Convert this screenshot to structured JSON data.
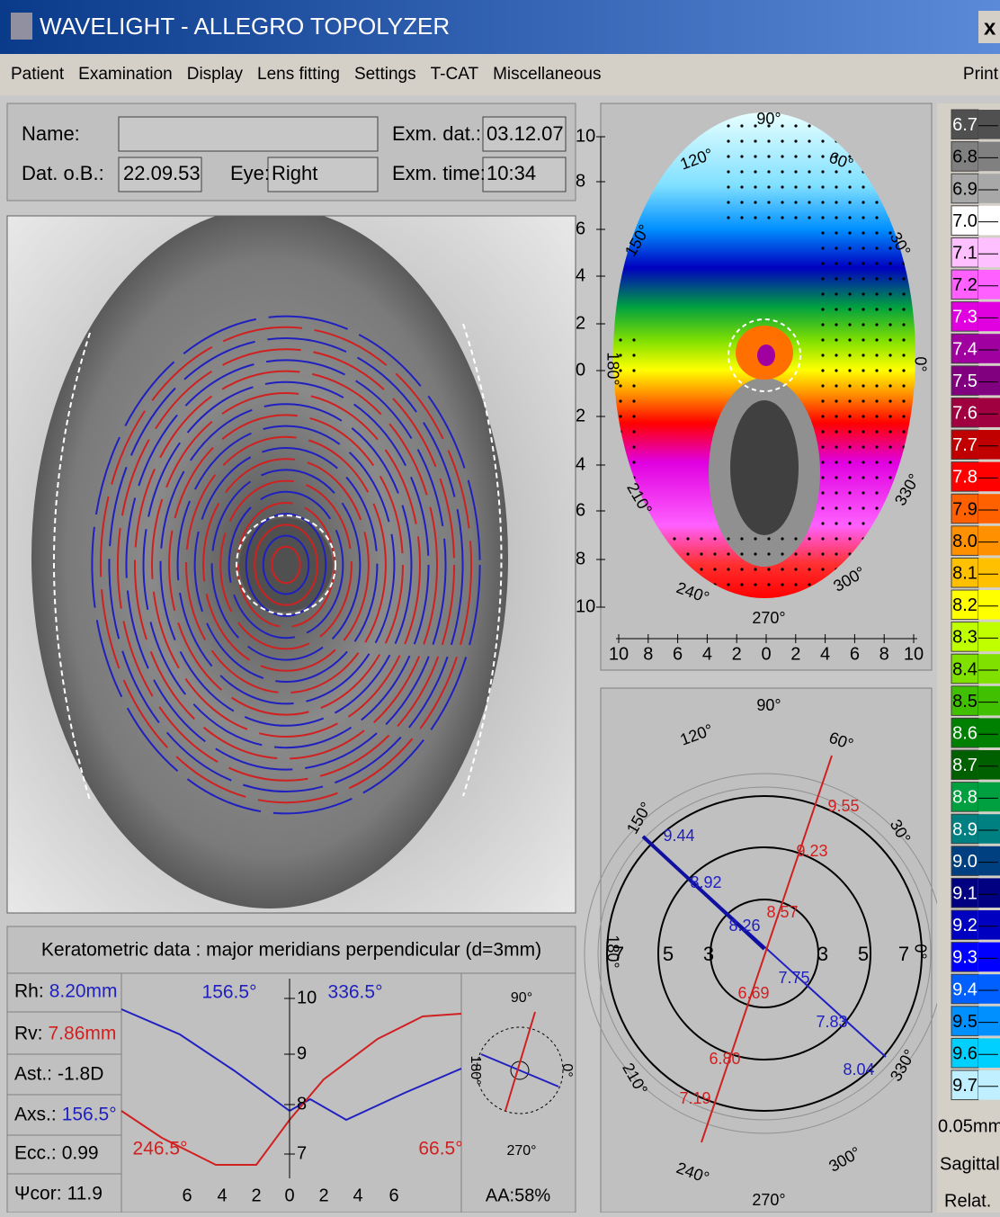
{
  "window": {
    "title": "WAVELIGHT  -  ALLEGRO TOPOLYZER",
    "close": "x"
  },
  "menu": {
    "items": [
      "Patient",
      "Examination",
      "Display",
      "Lens fitting",
      "Settings",
      "T-CAT",
      "Miscellaneous"
    ],
    "right": "Print"
  },
  "patient": {
    "name_label": "Name:",
    "dob_label": "Dat. o.B.:",
    "dob": "22.09.53",
    "eye_label": "Eye:",
    "eye": "Right",
    "exam_date_label": "Exm. dat.:",
    "exam_date": "03.12.07",
    "exam_time_label": "Exm. time:",
    "exam_time": "10:34"
  },
  "topo_map": {
    "y_labels": [
      "10",
      "8",
      "6",
      "4",
      "2",
      "0",
      "2",
      "4",
      "6",
      "8",
      "10"
    ],
    "x_labels": [
      "10",
      "8",
      "6",
      "4",
      "2",
      "0",
      "2",
      "4",
      "6",
      "8",
      "10"
    ],
    "angles": [
      "90°",
      "60°",
      "30°",
      "0°",
      "330°",
      "300°",
      "270°",
      "240°",
      "210°",
      "180°",
      "150°",
      "120°"
    ]
  },
  "meridians": {
    "angles": [
      "90°",
      "60°",
      "30°",
      "0°",
      "330°",
      "300°",
      "270°",
      "240°",
      "210°",
      "180°",
      "150°",
      "120°"
    ],
    "ring_labels": [
      "7",
      "5",
      "3",
      "3",
      "5",
      "7"
    ],
    "blue_values": [
      "9.44",
      "8.92",
      "8.26",
      "7.75",
      "7.83",
      "8.04"
    ],
    "red_values": [
      "9.55",
      "9.23",
      "8.57",
      "6.69",
      "6.80",
      "7.19"
    ]
  },
  "scale": {
    "values": [
      "6.7",
      "6.8",
      "6.9",
      "7.0",
      "7.1",
      "7.2",
      "7.3",
      "7.4",
      "7.5",
      "7.6",
      "7.7",
      "7.8",
      "7.9",
      "8.0",
      "8.1",
      "8.2",
      "8.3",
      "8.4",
      "8.5",
      "8.6",
      "8.7",
      "8.8",
      "8.9",
      "9.0",
      "9.1",
      "9.2",
      "9.3",
      "9.4",
      "9.5",
      "9.6",
      "9.7"
    ],
    "colors": [
      "#505050",
      "#808080",
      "#a8a8a8",
      "#ffffff",
      "#ffc0ff",
      "#ff60ff",
      "#e000e0",
      "#a000a0",
      "#800080",
      "#a00040",
      "#c00000",
      "#ff0000",
      "#ff6000",
      "#ff9000",
      "#ffc000",
      "#ffff00",
      "#c0ff00",
      "#80e000",
      "#40c000",
      "#008000",
      "#006000",
      "#00a040",
      "#008080",
      "#004080",
      "#000080",
      "#0000c0",
      "#0000ff",
      "#0060ff",
      "#0090ff",
      "#00d0ff",
      "#c0f0ff"
    ],
    "step": "0.05mm",
    "mode": "Sagittal",
    "reference": "Relat."
  },
  "keratometry": {
    "title": "Keratometric data : major meridians perpendicular (d=3mm)",
    "rows": [
      [
        "Rh:",
        "8.20mm"
      ],
      [
        "Rv:",
        "7.86mm"
      ],
      [
        "Ast.:",
        "-1.8D"
      ],
      [
        "Axs.:",
        "156.5°"
      ],
      [
        "Ecc.:",
        "0.99"
      ],
      [
        "Ψcor:",
        "11.9"
      ]
    ],
    "graph": {
      "blue_left": "156.5°",
      "blue_right": "336.5°",
      "red_left": "246.5°",
      "red_right": "66.5°",
      "y_ticks": [
        "10",
        "9",
        "8",
        "7"
      ],
      "x_ticks": [
        "6",
        "4",
        "2",
        "0",
        "2",
        "4",
        "6"
      ]
    },
    "compass": [
      "90°",
      "180°",
      "0°",
      "270°"
    ],
    "aa": "AA:58%"
  }
}
